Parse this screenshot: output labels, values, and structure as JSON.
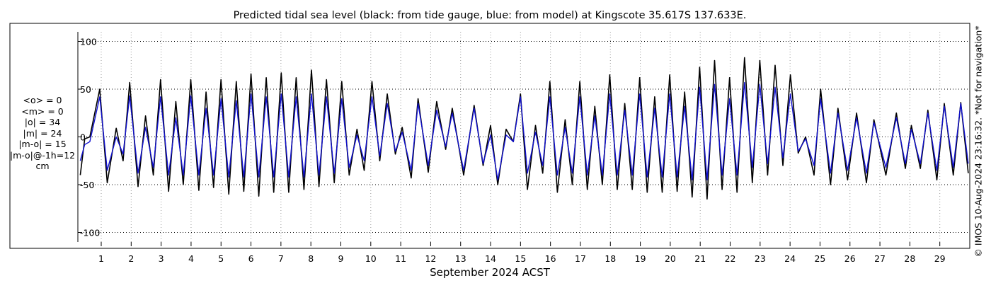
{
  "chart_data": {
    "type": "line",
    "title": "Predicted tidal sea level (black: from tide gauge, blue: from model) at Kingscote 35.617S 137.633E.",
    "xlabel": "September 2024 ACST",
    "ylabel": "",
    "ylim": [
      -110,
      110
    ],
    "yticks": [
      100,
      50,
      0,
      -50,
      -100
    ],
    "ytick_labels": [
      "100",
      "50",
      "0",
      "-50",
      "-100"
    ],
    "xlim": [
      0.22,
      30.0
    ],
    "xticks": [
      1,
      2,
      3,
      4,
      5,
      6,
      7,
      8,
      9,
      10,
      11,
      12,
      13,
      14,
      15,
      16,
      17,
      18,
      19,
      20,
      21,
      22,
      23,
      24,
      25,
      26,
      27,
      28,
      29
    ],
    "xtick_labels": [
      "1",
      "2",
      "3",
      "4",
      "5",
      "6",
      "7",
      "8",
      "9",
      "10",
      "11",
      "12",
      "13",
      "14",
      "15",
      "16",
      "17",
      "18",
      "19",
      "20",
      "21",
      "22",
      "23",
      "24",
      "25",
      "26",
      "27",
      "28",
      "29"
    ],
    "grid": true,
    "series": [
      {
        "name": "tide gauge",
        "color": "#000000",
        "x": [
          0.3,
          0.45,
          0.62,
          0.95,
          1.2,
          1.5,
          1.73,
          1.95,
          2.23,
          2.48,
          2.74,
          2.98,
          3.25,
          3.49,
          3.74,
          3.99,
          4.26,
          4.5,
          4.75,
          5.0,
          5.26,
          5.51,
          5.76,
          6.0,
          6.26,
          6.51,
          6.76,
          7.01,
          7.26,
          7.51,
          7.77,
          8.02,
          8.27,
          8.52,
          8.78,
          9.03,
          9.28,
          9.54,
          9.78,
          10.04,
          10.3,
          10.55,
          10.82,
          11.05,
          11.35,
          11.58,
          11.92,
          12.2,
          12.5,
          12.72,
          13.1,
          13.45,
          13.75,
          14.0,
          14.24,
          14.52,
          14.76,
          15.0,
          15.23,
          15.5,
          15.74,
          15.98,
          16.23,
          16.49,
          16.73,
          16.98,
          17.23,
          17.48,
          17.73,
          17.98,
          18.23,
          18.48,
          18.73,
          18.98,
          19.23,
          19.48,
          19.73,
          19.98,
          20.23,
          20.48,
          20.73,
          20.98,
          21.23,
          21.48,
          21.73,
          21.98,
          22.23,
          22.48,
          22.74,
          22.99,
          23.25,
          23.5,
          23.76,
          24.01,
          24.27,
          24.52,
          24.8,
          25.02,
          25.35,
          25.6,
          25.92,
          26.22,
          26.55,
          26.8,
          27.2,
          27.55,
          27.85,
          28.05,
          28.35,
          28.6,
          28.9,
          29.15,
          29.45,
          29.7,
          29.95
        ],
        "values": [
          -40,
          -2,
          0,
          50,
          -48,
          9,
          -25,
          57,
          -52,
          22,
          -40,
          60,
          -57,
          37,
          -50,
          60,
          -56,
          47,
          -53,
          60,
          -60,
          58,
          -57,
          66,
          -62,
          62,
          -58,
          67,
          -58,
          62,
          -55,
          70,
          -52,
          60,
          -48,
          58,
          -40,
          8,
          -35,
          58,
          -25,
          45,
          -18,
          10,
          -43,
          40,
          -37,
          37,
          -13,
          30,
          -40,
          33,
          -30,
          12,
          -50,
          8,
          -5,
          45,
          -55,
          12,
          -38,
          58,
          -58,
          18,
          -50,
          58,
          -55,
          32,
          -50,
          65,
          -55,
          35,
          -55,
          62,
          -58,
          42,
          -58,
          65,
          -57,
          47,
          -63,
          73,
          -65,
          80,
          -55,
          62,
          -58,
          83,
          -48,
          80,
          -40,
          75,
          -30,
          65,
          -17,
          0,
          -40,
          50,
          -50,
          30,
          -45,
          25,
          -48,
          18,
          -40,
          25,
          -33,
          12,
          -33,
          28,
          -45,
          35,
          -40,
          36,
          -38
        ]
      },
      {
        "name": "model",
        "color": "#1010d0",
        "x": [
          0.3,
          0.45,
          0.62,
          0.95,
          1.2,
          1.5,
          1.73,
          1.95,
          2.23,
          2.48,
          2.74,
          2.98,
          3.25,
          3.49,
          3.74,
          3.99,
          4.26,
          4.5,
          4.75,
          5.0,
          5.26,
          5.51,
          5.76,
          6.0,
          6.26,
          6.51,
          6.76,
          7.01,
          7.26,
          7.51,
          7.77,
          8.02,
          8.27,
          8.52,
          8.78,
          9.03,
          9.28,
          9.54,
          9.78,
          10.04,
          10.3,
          10.55,
          10.82,
          11.05,
          11.35,
          11.58,
          11.92,
          12.2,
          12.5,
          12.72,
          13.1,
          13.45,
          13.75,
          14.0,
          14.24,
          14.52,
          14.76,
          15.0,
          15.23,
          15.5,
          15.74,
          15.98,
          16.23,
          16.49,
          16.73,
          16.98,
          17.23,
          17.48,
          17.73,
          17.98,
          18.23,
          18.48,
          18.73,
          18.98,
          19.23,
          19.48,
          19.73,
          19.98,
          20.23,
          20.48,
          20.73,
          20.98,
          21.23,
          21.48,
          21.73,
          21.98,
          22.23,
          22.48,
          22.74,
          22.99,
          23.25,
          23.5,
          23.76,
          24.01,
          24.27,
          24.52,
          24.8,
          25.02,
          25.35,
          25.6,
          25.92,
          26.22,
          26.55,
          26.8,
          27.2,
          27.55,
          27.85,
          28.05,
          28.35,
          28.6,
          28.9,
          29.15,
          29.45,
          29.7,
          29.95
        ],
        "values": [
          -25,
          -8,
          -5,
          42,
          -35,
          0,
          -18,
          43,
          -38,
          10,
          -32,
          42,
          -40,
          20,
          -40,
          43,
          -40,
          30,
          -40,
          40,
          -42,
          38,
          -42,
          45,
          -42,
          42,
          -42,
          45,
          -42,
          42,
          -42,
          45,
          -40,
          42,
          -38,
          40,
          -32,
          2,
          -25,
          42,
          -20,
          35,
          -15,
          5,
          -35,
          35,
          -30,
          28,
          -10,
          25,
          -35,
          30,
          -28,
          2,
          -45,
          2,
          -5,
          42,
          -38,
          5,
          -30,
          42,
          -40,
          10,
          -38,
          42,
          -40,
          22,
          -40,
          45,
          -40,
          28,
          -40,
          45,
          -42,
          30,
          -42,
          45,
          -42,
          32,
          -45,
          52,
          -45,
          55,
          -40,
          40,
          -40,
          57,
          -32,
          55,
          -28,
          52,
          -22,
          45,
          -15,
          -2,
          -30,
          40,
          -38,
          25,
          -35,
          20,
          -38,
          15,
          -32,
          20,
          -28,
          8,
          -28,
          25,
          -35,
          32,
          -32,
          35,
          -28
        ]
      }
    ]
  },
  "stats": {
    "lines": [
      "<o> = 0",
      "<m> = 0",
      "|o| = 34",
      "|m| = 24",
      "|m-o| = 15",
      "|m-o|@-1h=12",
      "cm"
    ]
  },
  "side_note": "© IMOS 10-Aug-2024 23:16:32. *Not for navigation*"
}
